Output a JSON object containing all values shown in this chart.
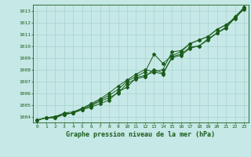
{
  "title": "Graphe pression niveau de la mer (hPa)",
  "background_color": "#c6e8e6",
  "grid_color": "#9ecece",
  "line_color": "#1a5c1a",
  "marker_color": "#1a5c1a",
  "xlim": [
    -0.5,
    23.5
  ],
  "ylim": [
    1003.5,
    1013.5
  ],
  "yticks": [
    1004,
    1005,
    1006,
    1007,
    1008,
    1009,
    1010,
    1011,
    1012,
    1013
  ],
  "xticks": [
    0,
    1,
    2,
    3,
    4,
    5,
    6,
    7,
    8,
    9,
    10,
    11,
    12,
    13,
    14,
    15,
    16,
    17,
    18,
    19,
    20,
    21,
    22,
    23
  ],
  "line1": [
    1003.7,
    1003.9,
    1003.9,
    1004.2,
    1004.3,
    1004.6,
    1004.8,
    1005.1,
    1005.4,
    1006.1,
    1006.5,
    1007.3,
    1007.5,
    1007.8,
    1007.6,
    1009.1,
    1009.3,
    1009.9,
    1010.0,
    1010.6,
    1011.1,
    1011.5,
    1012.4,
    1013.1
  ],
  "line2": [
    1003.7,
    1003.9,
    1003.9,
    1004.2,
    1004.3,
    1004.6,
    1004.9,
    1005.3,
    1005.6,
    1006.0,
    1006.8,
    1007.2,
    1007.4,
    1008.0,
    1007.7,
    1009.0,
    1009.2,
    1009.8,
    1010.0,
    1010.5,
    1011.1,
    1011.6,
    1012.5,
    1013.2
  ],
  "line3": [
    1003.7,
    1003.9,
    1004.0,
    1004.2,
    1004.3,
    1004.7,
    1005.0,
    1005.4,
    1005.8,
    1006.3,
    1007.0,
    1007.4,
    1007.8,
    1009.3,
    1008.5,
    1009.2,
    1009.5,
    1010.2,
    1010.5,
    1010.8,
    1011.4,
    1011.8,
    1012.3,
    1013.2
  ],
  "line4": [
    1003.7,
    1003.9,
    1004.0,
    1004.3,
    1004.4,
    1004.7,
    1005.1,
    1005.5,
    1006.0,
    1006.6,
    1007.1,
    1007.6,
    1008.0,
    1007.8,
    1008.0,
    1009.5,
    1009.6,
    1010.2,
    1010.5,
    1010.8,
    1011.4,
    1011.8,
    1012.4,
    1013.3
  ],
  "title_fontsize": 6.0,
  "tick_fontsize": 4.5,
  "linewidth": 0.7,
  "markersize": 2.0
}
